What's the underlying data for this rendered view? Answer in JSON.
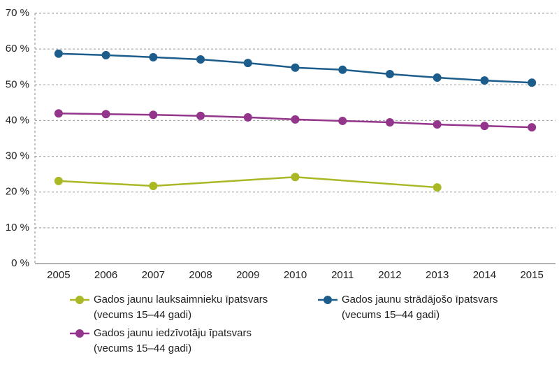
{
  "chart_data": {
    "type": "line",
    "x": [
      2005,
      2006,
      2007,
      2008,
      2009,
      2010,
      2011,
      2012,
      2013,
      2014,
      2015
    ],
    "xlim": [
      2004.5,
      2015.5
    ],
    "xticks": [
      2005,
      2006,
      2007,
      2008,
      2009,
      2010,
      2011,
      2012,
      2013,
      2014,
      2015
    ],
    "ylim": [
      0,
      70
    ],
    "yticks": [
      {
        "value": 0,
        "label": "0 %"
      },
      {
        "value": 10,
        "label": "10 %"
      },
      {
        "value": 20,
        "label": "20 %"
      },
      {
        "value": 30,
        "label": "30 %"
      },
      {
        "value": 40,
        "label": "40 %"
      },
      {
        "value": 50,
        "label": "50 %"
      },
      {
        "value": 60,
        "label": "60 %"
      },
      {
        "value": 70,
        "label": "70 %"
      }
    ],
    "grid": true,
    "series": [
      {
        "name": "Gados jaunu lauksaimnieku īpatsvars (vecums 15–44 gadi)",
        "color": "#a9b824",
        "x": [
          2005,
          2007,
          2010,
          2013
        ],
        "values": [
          23.1,
          21.7,
          24.2,
          21.3
        ]
      },
      {
        "name": "Gados jaunu strādājošo īpatsvars (vecums 15–44 gadi)",
        "color": "#1c5d8b",
        "values": [
          58.7,
          58.3,
          57.7,
          57.1,
          56.1,
          54.8,
          54.2,
          53.0,
          52.0,
          51.2,
          50.6
        ]
      },
      {
        "name": "Gados jaunu iedzīvotāju īpatsvars (vecums 15–44 gadi)",
        "color": "#93358b",
        "values": [
          42.0,
          41.8,
          41.6,
          41.3,
          40.9,
          40.3,
          39.9,
          39.5,
          38.9,
          38.5,
          38.1
        ]
      }
    ]
  }
}
